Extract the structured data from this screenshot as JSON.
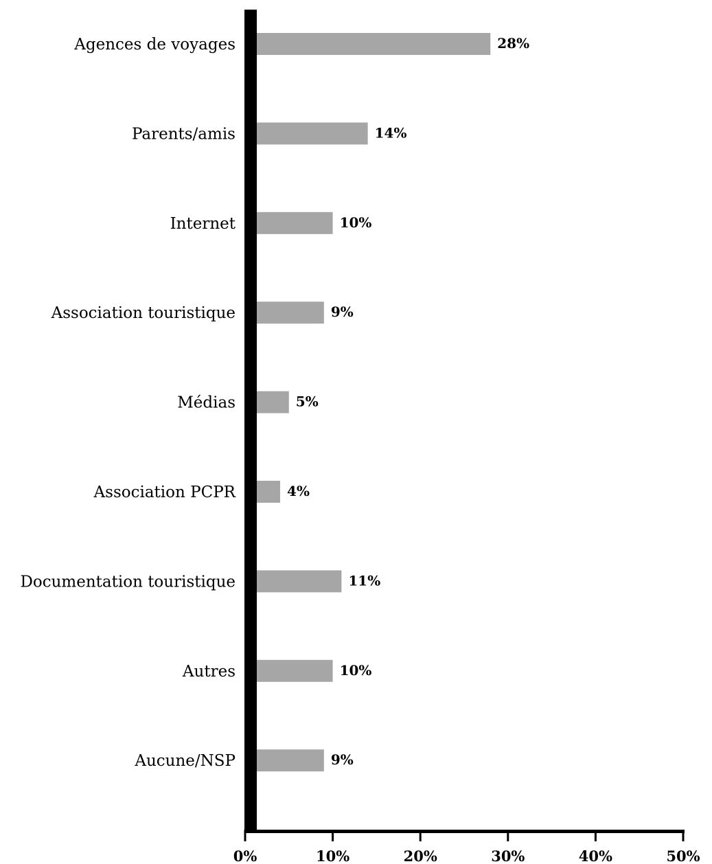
{
  "chart_data": {
    "type": "bar",
    "orientation": "horizontal",
    "categories": [
      "Agences de voyages",
      "Parents/amis",
      "Internet",
      "Association touristique",
      "Médias",
      "Association PCPR",
      "Documentation touristique",
      "Autres",
      "Aucune/NSP"
    ],
    "values": [
      28,
      14,
      10,
      9,
      5,
      4,
      11,
      10,
      9
    ],
    "value_labels": [
      "28%",
      "14%",
      "10%",
      "9%",
      "5%",
      "4%",
      "11%",
      "10%",
      "9%"
    ],
    "xlim": [
      0,
      50
    ],
    "xticks": [
      0,
      10,
      20,
      30,
      40,
      50
    ],
    "xtick_labels": [
      "0%",
      "10%",
      "20%",
      "30%",
      "40%",
      "50%"
    ],
    "title": "",
    "xlabel": "",
    "ylabel": "",
    "grid": false,
    "legend": "none",
    "colors": {
      "bar": "#a6a6a6",
      "axis": "#000000"
    }
  }
}
